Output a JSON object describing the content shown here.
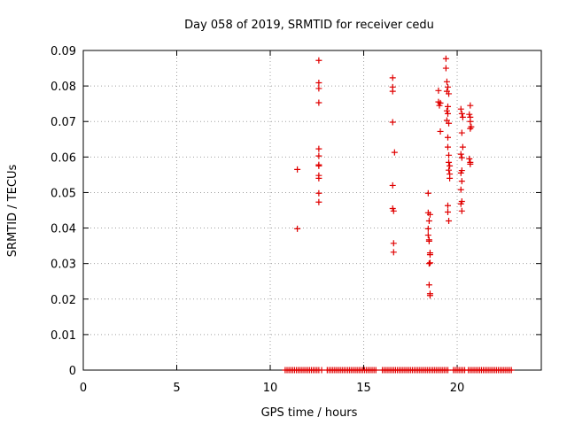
{
  "chart_data": {
    "type": "scatter",
    "title": "Day 058 of 2019, SRMTID for receiver cedu",
    "xlabel": "GPS time / hours",
    "ylabel": "SRMTID / TECUs",
    "xlim": [
      0,
      24.5
    ],
    "ylim": [
      0,
      0.09
    ],
    "xticks": [
      0,
      5,
      10,
      15,
      20
    ],
    "xtick_labels": [
      "0",
      "5",
      "10",
      "15",
      "20"
    ],
    "yticks": [
      0,
      0.01,
      0.02,
      0.03,
      0.04,
      0.05,
      0.06,
      0.07,
      0.08,
      0.09
    ],
    "ytick_labels": [
      "0",
      "0.01",
      "0.02",
      "0.03",
      "0.04",
      "0.05",
      "0.06",
      "0.07",
      "0.08",
      "0.09"
    ],
    "grid": true,
    "marker": "+",
    "series": [
      {
        "name": "SRMTID",
        "color": "#e00000",
        "points": [
          [
            11.45,
            0.0565
          ],
          [
            11.45,
            0.0398
          ],
          [
            12.6,
            0.0872
          ],
          [
            12.6,
            0.0809
          ],
          [
            12.6,
            0.0793
          ],
          [
            12.6,
            0.0753
          ],
          [
            12.6,
            0.0623
          ],
          [
            12.6,
            0.0603
          ],
          [
            12.6,
            0.0578
          ],
          [
            12.6,
            0.0575
          ],
          [
            12.6,
            0.0548
          ],
          [
            12.6,
            0.054
          ],
          [
            12.6,
            0.0498
          ],
          [
            12.6,
            0.0473
          ],
          [
            16.55,
            0.0823
          ],
          [
            16.55,
            0.0797
          ],
          [
            16.55,
            0.0785
          ],
          [
            16.55,
            0.0698
          ],
          [
            16.65,
            0.0613
          ],
          [
            16.55,
            0.052
          ],
          [
            16.55,
            0.0455
          ],
          [
            16.6,
            0.0448
          ],
          [
            16.6,
            0.0357
          ],
          [
            16.6,
            0.0332
          ],
          [
            18.45,
            0.0498
          ],
          [
            18.45,
            0.0443
          ],
          [
            18.55,
            0.0438
          ],
          [
            18.5,
            0.042
          ],
          [
            18.45,
            0.0398
          ],
          [
            18.45,
            0.038
          ],
          [
            18.5,
            0.0367
          ],
          [
            18.5,
            0.0363
          ],
          [
            18.55,
            0.033
          ],
          [
            18.55,
            0.0325
          ],
          [
            18.55,
            0.0302
          ],
          [
            18.5,
            0.03
          ],
          [
            18.5,
            0.024
          ],
          [
            18.55,
            0.0215
          ],
          [
            18.55,
            0.021
          ],
          [
            19.0,
            0.0787
          ],
          [
            19.0,
            0.0755
          ],
          [
            19.05,
            0.0745
          ],
          [
            19.1,
            0.0752
          ],
          [
            19.1,
            0.0672
          ],
          [
            19.4,
            0.0877
          ],
          [
            19.4,
            0.085
          ],
          [
            19.45,
            0.0812
          ],
          [
            19.5,
            0.0797
          ],
          [
            19.45,
            0.0785
          ],
          [
            19.55,
            0.0778
          ],
          [
            19.5,
            0.0742
          ],
          [
            19.45,
            0.073
          ],
          [
            19.5,
            0.0722
          ],
          [
            19.45,
            0.0703
          ],
          [
            19.55,
            0.0695
          ],
          [
            19.5,
            0.0655
          ],
          [
            19.5,
            0.0628
          ],
          [
            19.55,
            0.0605
          ],
          [
            19.55,
            0.0585
          ],
          [
            19.6,
            0.0575
          ],
          [
            19.55,
            0.0563
          ],
          [
            19.6,
            0.0552
          ],
          [
            19.6,
            0.054
          ],
          [
            19.5,
            0.0463
          ],
          [
            19.5,
            0.0445
          ],
          [
            19.55,
            0.042
          ],
          [
            20.2,
            0.0735
          ],
          [
            20.25,
            0.0722
          ],
          [
            20.3,
            0.0712
          ],
          [
            20.25,
            0.0668
          ],
          [
            20.3,
            0.0628
          ],
          [
            20.2,
            0.0608
          ],
          [
            20.25,
            0.0598
          ],
          [
            20.25,
            0.0562
          ],
          [
            20.2,
            0.0555
          ],
          [
            20.25,
            0.0532
          ],
          [
            20.2,
            0.0508
          ],
          [
            20.25,
            0.0475
          ],
          [
            20.2,
            0.0468
          ],
          [
            20.25,
            0.0448
          ],
          [
            20.7,
            0.0745
          ],
          [
            20.65,
            0.072
          ],
          [
            20.7,
            0.0712
          ],
          [
            20.7,
            0.07
          ],
          [
            20.75,
            0.0685
          ],
          [
            20.7,
            0.068
          ],
          [
            20.65,
            0.0595
          ],
          [
            20.7,
            0.0585
          ],
          [
            20.7,
            0.058
          ]
        ],
        "zero_points_x": [
          10.8,
          10.9,
          11.0,
          11.1,
          11.2,
          11.3,
          11.4,
          11.5,
          11.6,
          11.7,
          11.8,
          11.9,
          12.0,
          12.1,
          12.2,
          12.3,
          12.4,
          12.5,
          12.6,
          12.75,
          13.05,
          13.15,
          13.25,
          13.35,
          13.45,
          13.55,
          13.65,
          13.75,
          13.85,
          13.95,
          14.05,
          14.15,
          14.25,
          14.35,
          14.45,
          14.55,
          14.65,
          14.75,
          14.85,
          14.95,
          15.05,
          15.15,
          15.25,
          15.35,
          15.45,
          15.55,
          15.65,
          16.0,
          16.1,
          16.2,
          16.3,
          16.4,
          16.5,
          16.6,
          16.7,
          16.8,
          16.9,
          17.0,
          17.1,
          17.2,
          17.3,
          17.4,
          17.5,
          17.6,
          17.7,
          17.8,
          17.9,
          18.0,
          18.1,
          18.2,
          18.3,
          18.4,
          18.5,
          18.6,
          18.7,
          18.8,
          18.9,
          19.0,
          19.1,
          19.2,
          19.3,
          19.4,
          19.5,
          19.8,
          19.9,
          20.0,
          20.1,
          20.2,
          20.3,
          20.4,
          20.6,
          20.7,
          20.8,
          20.9,
          21.0,
          21.1,
          21.2,
          21.3,
          21.4,
          21.5,
          21.6,
          21.7,
          21.8,
          21.9,
          22.0,
          22.1,
          22.2,
          22.3,
          22.4,
          22.5,
          22.6,
          22.7,
          22.8,
          22.9
        ]
      }
    ]
  }
}
